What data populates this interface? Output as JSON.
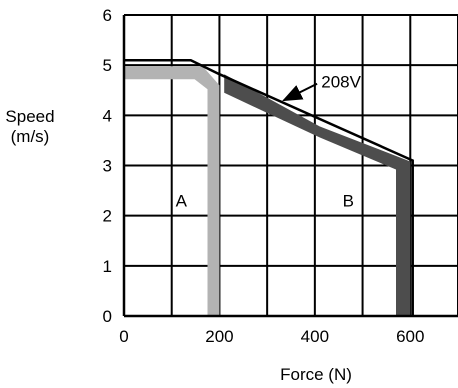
{
  "chart_data": {
    "type": "line",
    "title": "",
    "xlabel": "Force (N)",
    "ylabel_lines": [
      "Speed",
      "(m/s)"
    ],
    "xlim": [
      0,
      700
    ],
    "ylim": [
      0,
      6
    ],
    "x_ticks": [
      0,
      200,
      400,
      600
    ],
    "x_tick_labels": [
      "0",
      "200",
      "400",
      "600"
    ],
    "y_ticks": [
      0,
      1,
      2,
      3,
      4,
      5,
      6
    ],
    "y_tick_labels": [
      "0",
      "1",
      "2",
      "3",
      "4",
      "5",
      "6"
    ],
    "x_grid": [
      0,
      100,
      200,
      300,
      400,
      500,
      600,
      700
    ],
    "y_grid": [
      0,
      1,
      2,
      3,
      4,
      5,
      6
    ],
    "grid": true,
    "series": [
      {
        "name": "A",
        "style": "band",
        "color": "#b3b3b3",
        "outer": [
          [
            0,
            4.98
          ],
          [
            165,
            4.98
          ],
          [
            200,
            4.6
          ],
          [
            200,
            0
          ]
        ],
        "inner": [
          [
            0,
            4.72
          ],
          [
            148,
            4.72
          ],
          [
            175,
            4.52
          ],
          [
            175,
            0
          ]
        ]
      },
      {
        "name": "B",
        "style": "band",
        "color": "#4d4d4d",
        "outer": [
          [
            210,
            4.82
          ],
          [
            410,
            3.78
          ],
          [
            600,
            3.08
          ],
          [
            600,
            0
          ]
        ],
        "inner": [
          [
            210,
            4.45
          ],
          [
            410,
            3.56
          ],
          [
            570,
            2.92
          ],
          [
            570,
            0
          ]
        ]
      },
      {
        "name": "208V",
        "style": "line",
        "color": "#000000",
        "points": [
          [
            0,
            5.1
          ],
          [
            140,
            5.1
          ],
          [
            200,
            4.82
          ],
          [
            605,
            3.1
          ],
          [
            605,
            0
          ]
        ]
      }
    ],
    "region_labels": [
      {
        "text": "A",
        "x": 120,
        "y": 2.3
      },
      {
        "text": "B",
        "x": 470,
        "y": 2.3
      }
    ],
    "annotations": [
      {
        "text": "208V",
        "x": 455,
        "y": 4.55,
        "arrow_to": [
          335,
          4.3
        ]
      }
    ]
  }
}
